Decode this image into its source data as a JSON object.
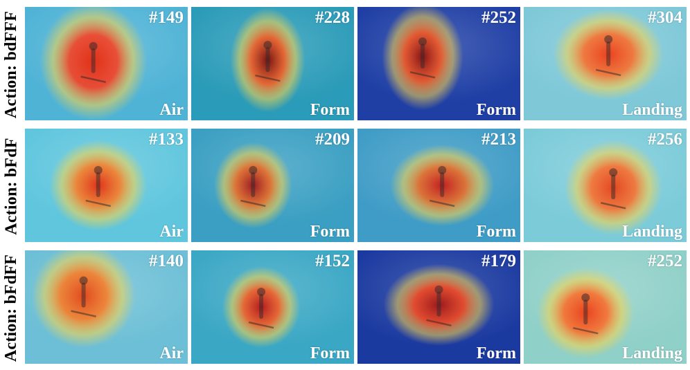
{
  "rows": [
    {
      "label": "Action: bdFFF",
      "tiles": [
        {
          "frame": "#149",
          "phase": "Air",
          "bg": "#4fb3d6",
          "blob": "#ff3b1a",
          "core": "#e62a10",
          "hx": 0.42,
          "hy": 0.48,
          "hrx": 0.33,
          "hry": 0.52
        },
        {
          "frame": "#228",
          "phase": "Form",
          "bg": "#2a9bb8",
          "blob": "#ff5a1c",
          "core": "#7a0d0a",
          "hx": 0.47,
          "hy": 0.47,
          "hrx": 0.23,
          "hry": 0.46
        },
        {
          "frame": "#252",
          "phase": "Form",
          "bg": "#1f3fa5",
          "blob": "#ff5a1c",
          "core": "#8a1010",
          "hx": 0.4,
          "hy": 0.44,
          "hrx": 0.25,
          "hry": 0.47
        },
        {
          "frame": "#304",
          "phase": "Landing",
          "bg": "#7ec8d8",
          "blob": "#ff6a25",
          "core": "#ee3a15",
          "hx": 0.52,
          "hy": 0.42,
          "hrx": 0.34,
          "hry": 0.4
        }
      ]
    },
    {
      "label": "Action: bFdF",
      "tiles": [
        {
          "frame": "#133",
          "phase": "Air",
          "bg": "#5fc6dd",
          "blob": "#ff7a1f",
          "core": "#e62a10",
          "hx": 0.45,
          "hy": 0.5,
          "hrx": 0.3,
          "hry": 0.4
        },
        {
          "frame": "#209",
          "phase": "Form",
          "bg": "#3a9fc2",
          "blob": "#f56a1e",
          "core": "#a0141a",
          "hx": 0.38,
          "hy": 0.5,
          "hrx": 0.24,
          "hry": 0.38
        },
        {
          "frame": "#213",
          "phase": "Form",
          "bg": "#3f9cc6",
          "blob": "#f26a20",
          "core": "#c81818",
          "hx": 0.52,
          "hy": 0.5,
          "hrx": 0.32,
          "hry": 0.36
        },
        {
          "frame": "#256",
          "phase": "Landing",
          "bg": "#7ccbd9",
          "blob": "#ff6a25",
          "core": "#e84018",
          "hx": 0.55,
          "hy": 0.52,
          "hrx": 0.3,
          "hry": 0.42
        }
      ]
    },
    {
      "label": "Action: bFdFF",
      "tiles": [
        {
          "frame": "#140",
          "phase": "Air",
          "bg": "#6cbfd6",
          "blob": "#ff7a1f",
          "core": "#e64216",
          "hx": 0.36,
          "hy": 0.4,
          "hrx": 0.32,
          "hry": 0.46
        },
        {
          "frame": "#152",
          "phase": "Form",
          "bg": "#3aa7c4",
          "blob": "#ff5a1c",
          "core": "#b81416",
          "hx": 0.43,
          "hy": 0.5,
          "hrx": 0.24,
          "hry": 0.36
        },
        {
          "frame": "#179",
          "phase": "Form",
          "bg": "#1b3aa0",
          "blob": "#ff4a1a",
          "core": "#a01616",
          "hx": 0.5,
          "hy": 0.48,
          "hrx": 0.34,
          "hry": 0.36
        },
        {
          "frame": "#252",
          "phase": "Landing",
          "bg": "#8fd0c8",
          "blob": "#ff6a25",
          "core": "#ee3a15",
          "hx": 0.38,
          "hy": 0.55,
          "hrx": 0.3,
          "hry": 0.4
        }
      ]
    }
  ]
}
